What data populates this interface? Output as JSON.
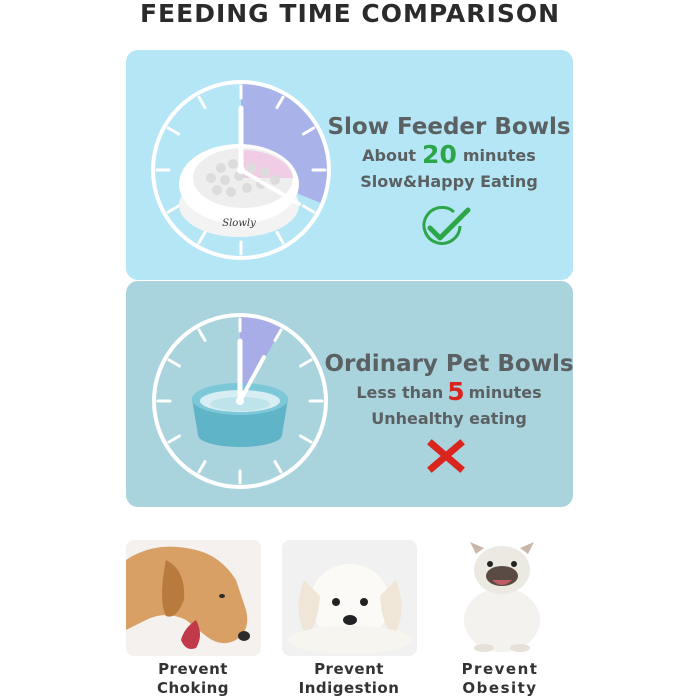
{
  "title": "FEEDING TIME COMPARISON",
  "slow": {
    "heading": "Slow Feeder Bowls",
    "prefix": "About",
    "number": "20",
    "suffix": "minutes",
    "subtext": "Slow&Happy Eating",
    "bowl_brand": "Slowly",
    "mark_icon": "check-circle-icon",
    "accent": "#2da64a"
  },
  "ordinary": {
    "heading": "Ordinary Pet Bowls",
    "prefix": "Less than",
    "number": "5",
    "suffix": "minutes",
    "subtext": "Unhealthy eating",
    "mark_icon": "cross-icon",
    "accent": "#d9251d"
  },
  "benefits": [
    {
      "line1": "Prevent",
      "line2": "Choking",
      "image": "dog-eating-photo"
    },
    {
      "line1": "Prevent",
      "line2": "Indigestion",
      "image": "puppy-lying-photo"
    },
    {
      "line1": "Prevent",
      "line2": "Obesity",
      "image": "bulldog-sitting-photo"
    }
  ],
  "colors": {
    "slow_panel": "#b4e6f5",
    "ordinary_panel": "#a9d3dd",
    "clock_sector": "#a7a9e8"
  }
}
